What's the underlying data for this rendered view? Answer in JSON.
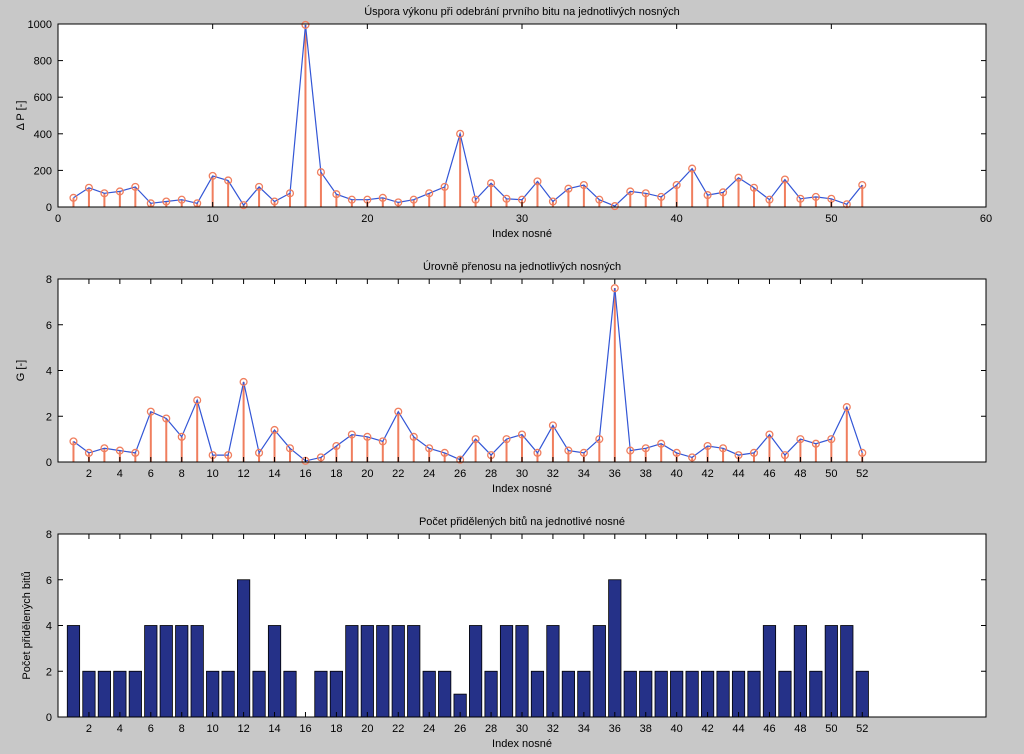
{
  "figure": {
    "background": "#c8c8c8",
    "axes_bg": "#ffffff",
    "line_color": "#3356d6",
    "stem_color": "#f07e5e",
    "bar_color": "#253188"
  },
  "chart_data": [
    {
      "type": "line",
      "style": "stem with connecting line",
      "title": "Úspora výkonu při odebrání prvního bitu na jednotlivých nosných",
      "xlabel": "Index nosné",
      "ylabel": "Δ P [-]",
      "xlim": [
        0,
        60
      ],
      "ylim": [
        0,
        1000
      ],
      "xticks": [
        0,
        10,
        20,
        30,
        40,
        50,
        60
      ],
      "yticks": [
        0,
        200,
        400,
        600,
        800,
        1000
      ],
      "x": [
        1,
        2,
        3,
        4,
        5,
        6,
        7,
        8,
        9,
        10,
        11,
        12,
        13,
        14,
        15,
        16,
        17,
        18,
        19,
        20,
        21,
        22,
        23,
        24,
        25,
        26,
        27,
        28,
        29,
        30,
        31,
        32,
        33,
        34,
        35,
        36,
        37,
        38,
        39,
        40,
        41,
        42,
        43,
        44,
        45,
        46,
        47,
        48,
        49,
        50,
        51,
        52
      ],
      "values": [
        50,
        105,
        75,
        85,
        110,
        20,
        30,
        40,
        20,
        170,
        145,
        10,
        110,
        30,
        75,
        995,
        190,
        70,
        40,
        40,
        50,
        25,
        40,
        75,
        110,
        400,
        40,
        130,
        45,
        40,
        140,
        30,
        100,
        120,
        40,
        5,
        85,
        75,
        55,
        120,
        210,
        65,
        80,
        160,
        105,
        40,
        150,
        45,
        55,
        45,
        15,
        120
      ]
    },
    {
      "type": "line",
      "style": "stem with connecting line",
      "title": "Úrovně přenosu na jednotlivých nosných",
      "xlabel": "Index nosné",
      "ylabel": "G [-]",
      "xlim": [
        0,
        60
      ],
      "ylim": [
        0,
        8
      ],
      "xticks": [
        2,
        4,
        6,
        8,
        10,
        12,
        14,
        16,
        18,
        20,
        22,
        24,
        26,
        28,
        30,
        32,
        34,
        36,
        38,
        40,
        42,
        44,
        46,
        48,
        50,
        52
      ],
      "yticks": [
        0,
        2,
        4,
        6,
        8
      ],
      "x": [
        1,
        2,
        3,
        4,
        5,
        6,
        7,
        8,
        9,
        10,
        11,
        12,
        13,
        14,
        15,
        16,
        17,
        18,
        19,
        20,
        21,
        22,
        23,
        24,
        25,
        26,
        27,
        28,
        29,
        30,
        31,
        32,
        33,
        34,
        35,
        36,
        37,
        38,
        39,
        40,
        41,
        42,
        43,
        44,
        45,
        46,
        47,
        48,
        49,
        50,
        51,
        52
      ],
      "values": [
        0.9,
        0.4,
        0.6,
        0.5,
        0.4,
        2.2,
        1.9,
        1.1,
        2.7,
        0.3,
        0.3,
        3.5,
        0.4,
        1.4,
        0.6,
        0.05,
        0.2,
        0.7,
        1.2,
        1.1,
        0.9,
        2.2,
        1.1,
        0.6,
        0.4,
        0.1,
        1.0,
        0.3,
        1.0,
        1.2,
        0.4,
        1.6,
        0.5,
        0.4,
        1.0,
        7.6,
        0.5,
        0.6,
        0.8,
        0.4,
        0.2,
        0.7,
        0.6,
        0.3,
        0.4,
        1.2,
        0.3,
        1.0,
        0.8,
        1.0,
        2.4,
        0.4
      ]
    },
    {
      "type": "bar",
      "title": "Počet přidělených bitů na jednotlivé nosné",
      "xlabel": "Index nosné",
      "ylabel": "Počet přidělených bitů",
      "xlim": [
        0,
        60
      ],
      "ylim": [
        0,
        8
      ],
      "xticks": [
        2,
        4,
        6,
        8,
        10,
        12,
        14,
        16,
        18,
        20,
        22,
        24,
        26,
        28,
        30,
        32,
        34,
        36,
        38,
        40,
        42,
        44,
        46,
        48,
        50,
        52
      ],
      "yticks": [
        0,
        2,
        4,
        6,
        8
      ],
      "categories": [
        1,
        2,
        3,
        4,
        5,
        6,
        7,
        8,
        9,
        10,
        11,
        12,
        13,
        14,
        15,
        16,
        17,
        18,
        19,
        20,
        21,
        22,
        23,
        24,
        25,
        26,
        27,
        28,
        29,
        30,
        31,
        32,
        33,
        34,
        35,
        36,
        37,
        38,
        39,
        40,
        41,
        42,
        43,
        44,
        45,
        46,
        47,
        48,
        49,
        50,
        51,
        52
      ],
      "values": [
        4,
        2,
        2,
        2,
        2,
        4,
        4,
        4,
        4,
        2,
        2,
        6,
        2,
        4,
        2,
        0,
        2,
        2,
        4,
        4,
        4,
        4,
        4,
        2,
        2,
        1,
        4,
        2,
        4,
        4,
        2,
        4,
        2,
        2,
        4,
        6,
        2,
        2,
        2,
        2,
        2,
        2,
        2,
        2,
        2,
        4,
        2,
        4,
        2,
        4,
        4,
        2
      ]
    }
  ]
}
